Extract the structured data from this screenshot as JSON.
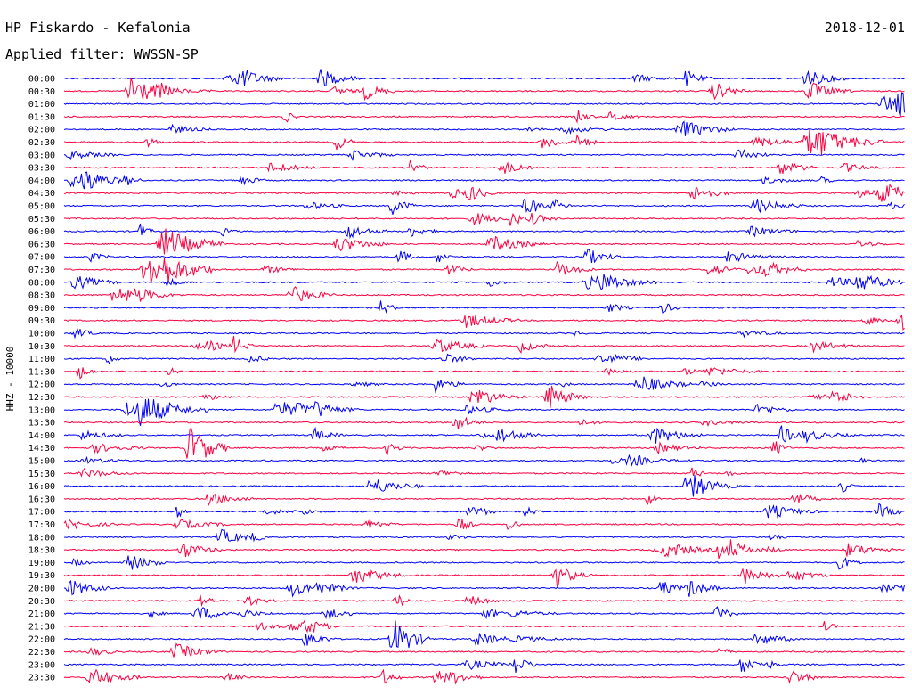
{
  "header": {
    "station": "HP Fiskardo - Kefalonia",
    "filter_label": "Applied filter: WWSSN-SP",
    "date": "2018-12-01"
  },
  "chart_data": {
    "type": "line",
    "subtype": "helicorder",
    "title": "HP Fiskardo - Kefalonia",
    "subtitle": "Applied filter: WWSSN-SP",
    "date": "2018-12-01",
    "ylabel": "HHZ - 10000",
    "row_labels": [
      "00:00",
      "00:30",
      "01:00",
      "01:30",
      "02:00",
      "02:30",
      "03:00",
      "03:30",
      "04:00",
      "04:30",
      "05:00",
      "05:30",
      "06:00",
      "06:30",
      "07:00",
      "07:30",
      "08:00",
      "08:30",
      "09:00",
      "09:30",
      "10:00",
      "10:30",
      "11:00",
      "11:30",
      "12:00",
      "12:30",
      "13:00",
      "13:30",
      "14:00",
      "14:30",
      "15:00",
      "15:30",
      "16:00",
      "16:30",
      "17:00",
      "17:30",
      "18:00",
      "18:30",
      "19:00",
      "19:30",
      "20:00",
      "20:30",
      "21:00",
      "21:30",
      "22:00",
      "22:30",
      "23:00",
      "23:30"
    ],
    "trace_colors": [
      "#0000ff",
      "#ff0040"
    ],
    "grid": false,
    "legend": "none"
  }
}
